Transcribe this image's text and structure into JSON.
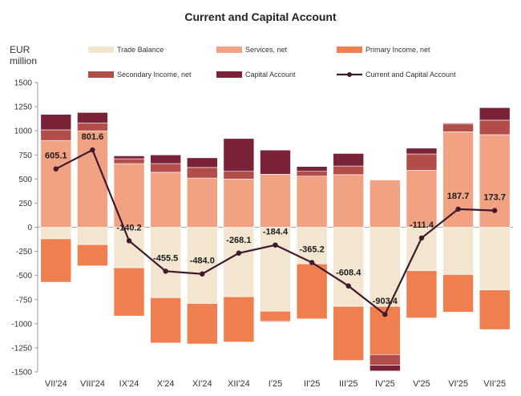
{
  "chart_data": {
    "type": "bar",
    "stacked": true,
    "title": "Current and Capital Account",
    "ylabel_line1": "EUR",
    "ylabel_line2": "million",
    "ylim": [
      -1500,
      1500
    ],
    "yticks": [
      -1500,
      -1250,
      -1000,
      -750,
      -500,
      -250,
      0,
      250,
      500,
      750,
      1000,
      1250,
      1500
    ],
    "categories": [
      "VII'24",
      "VIII'24",
      "IX'24",
      "X'24",
      "XI'24",
      "XII'24",
      "I'25",
      "II'25",
      "III'25",
      "IV'25",
      "V'25",
      "VI'25",
      "VII'25"
    ],
    "series": [
      {
        "name": "Trade Balance",
        "color": "#f2e6d0",
        "values": [
          -120,
          -180,
          -420,
          -730,
          -790,
          -720,
          -870,
          -380,
          -820,
          -820,
          -450,
          -490,
          -650
        ]
      },
      {
        "name": "Services, net",
        "color": "#f0a283",
        "values": [
          900,
          1000,
          660,
          570,
          510,
          500,
          550,
          530,
          545,
          490,
          590,
          990,
          960
        ]
      },
      {
        "name": "Primary Income, net",
        "color": "#ef7f4f",
        "values": [
          -450,
          -220,
          -500,
          -470,
          -420,
          -470,
          -100,
          -570,
          -560,
          -500,
          -490,
          -390,
          -410
        ]
      },
      {
        "name": "Secondary Income, net",
        "color": "#b24d4a",
        "values": [
          110,
          80,
          50,
          90,
          110,
          80,
          -10,
          50,
          90,
          -110,
          170,
          80,
          150
        ]
      },
      {
        "name": "Capital Account",
        "color": "#7a2238",
        "values": [
          160,
          110,
          30,
          90,
          100,
          340,
          250,
          50,
          130,
          -60,
          60,
          10,
          130
        ]
      }
    ],
    "line": {
      "name": "Current and Capital Account",
      "color": "#3e1a2c",
      "values": [
        605.1,
        801.6,
        -140.2,
        -455.5,
        -484.0,
        -268.1,
        -184.4,
        -365.2,
        -608.4,
        -903.4,
        -111.4,
        187.7,
        173.7
      ]
    },
    "data_labels": [
      "605.1",
      "801.6",
      "-140.2",
      "-455.5",
      "-484.0",
      "-268.1",
      "-184.4",
      "-365.2",
      "-608.4",
      "-903.4",
      "-111.4",
      "187.7",
      "173.7"
    ],
    "legend": [
      {
        "label": "Trade Balance",
        "color": "#f2e6d0",
        "kind": "bar"
      },
      {
        "label": "Services, net",
        "color": "#f0a283",
        "kind": "bar"
      },
      {
        "label": "Primary Income, net",
        "color": "#ef7f4f",
        "kind": "bar"
      },
      {
        "label": "Secondary Income, net",
        "color": "#b24d4a",
        "kind": "bar"
      },
      {
        "label": "Capital Account",
        "color": "#7a2238",
        "kind": "bar"
      },
      {
        "label": "Current and Capital Account",
        "color": "#3e1a2c",
        "kind": "line"
      }
    ]
  }
}
